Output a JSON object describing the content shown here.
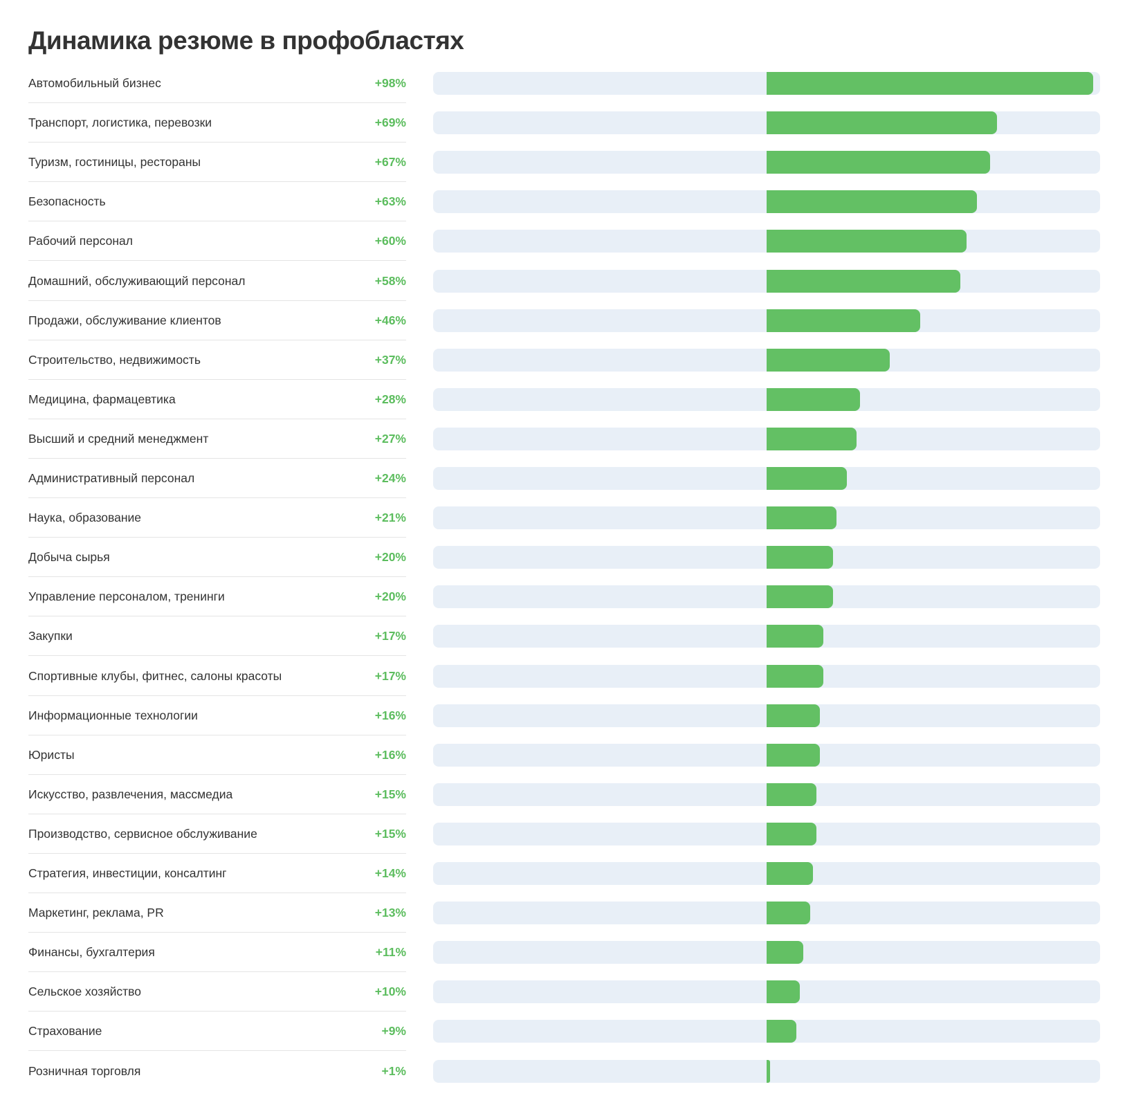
{
  "chart_data": {
    "type": "bar",
    "title": "Динамика резюме в профобластях",
    "xlabel": "",
    "ylabel": "",
    "grid": false,
    "xlim": [
      -100,
      100
    ],
    "colors": {
      "bar": "#63c064",
      "track": "#e8eff7",
      "value_text": "#5cbd5e",
      "divider": "#e4e4e4"
    },
    "categories": [
      "Автомобильный бизнес",
      "Транспорт, логистика, перевозки",
      "Туризм, гостиницы, рестораны",
      "Безопасность",
      "Рабочий персонал",
      "Домашний, обслуживающий персонал",
      "Продажи, обслуживание клиентов",
      "Строительство, недвижимость",
      "Медицина, фармацевтика",
      "Высший и средний менеджмент",
      "Административный персонал",
      "Наука, образование",
      "Добыча сырья",
      "Управление персоналом, тренинги",
      "Закупки",
      "Спортивные клубы, фитнес, салоны красоты",
      "Информационные технологии",
      "Юристы",
      "Искусство, развлечения, массмедиа",
      "Производство, сервисное обслуживание",
      "Стратегия, инвестиции, консалтинг",
      "Маркетинг, реклама, PR",
      "Финансы, бухгалтерия",
      "Сельское хозяйство",
      "Страхование",
      "Розничная торговля"
    ],
    "values": [
      98,
      69,
      67,
      63,
      60,
      58,
      46,
      37,
      28,
      27,
      24,
      21,
      20,
      20,
      17,
      17,
      16,
      16,
      15,
      15,
      14,
      13,
      11,
      10,
      9,
      1
    ],
    "value_labels": [
      "+98%",
      "+69%",
      "+67%",
      "+63%",
      "+60%",
      "+58%",
      "+46%",
      "+37%",
      "+28%",
      "+27%",
      "+24%",
      "+21%",
      "+20%",
      "+20%",
      "+17%",
      "+17%",
      "+16%",
      "+16%",
      "+15%",
      "+15%",
      "+14%",
      "+13%",
      "+11%",
      "+10%",
      "+9%",
      "+1%"
    ]
  }
}
